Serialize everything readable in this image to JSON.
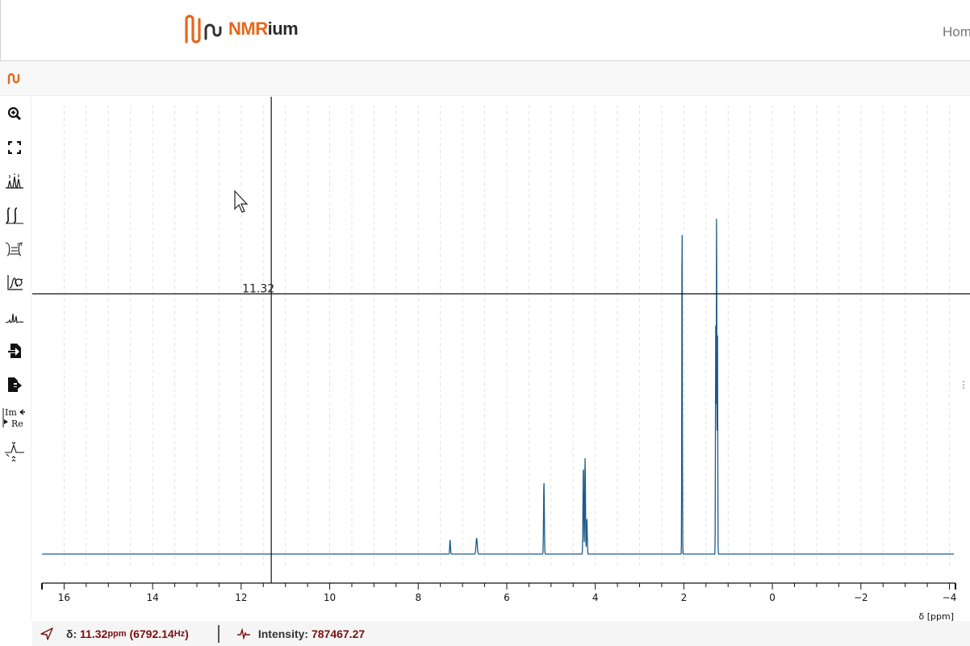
{
  "header": {
    "logo_text_nm": "NMR",
    "logo_text_ium": "ium",
    "home_link": "Hom"
  },
  "toolbar": {
    "tools": [
      {
        "name": "zoom-in-icon"
      },
      {
        "name": "full-zoom-icon"
      },
      {
        "name": "peak-picking-icon"
      },
      {
        "name": "integral-icon"
      },
      {
        "name": "ranges-icon"
      },
      {
        "name": "phase-correction-icon"
      },
      {
        "name": "baseline-correction-icon"
      },
      {
        "name": "import-icon"
      },
      {
        "name": "export-icon"
      },
      {
        "name": "real-imaginary-icon"
      },
      {
        "name": "spectra-stack-icon"
      }
    ],
    "re_im_label_top": "Im",
    "re_im_label_bottom": "Re"
  },
  "crosshair": {
    "ppm_label": "11.32",
    "ppm": 11.32,
    "cursor_intensity_fraction": 0.73
  },
  "footer": {
    "delta_label": "δ:",
    "delta_value": "11.32",
    "delta_unit": "ppm",
    "hz_open": "(",
    "hz_value": "6792.14",
    "hz_unit": "Hz",
    "hz_close": ")",
    "intensity_label": "Intensity:",
    "intensity_value": "787467.27"
  },
  "colors": {
    "spectrum": "#1f5b8a",
    "accent": "#e5671a",
    "value_text": "#7a1111"
  },
  "chart_data": {
    "type": "line",
    "title": "",
    "xlabel": "δ [ppm]",
    "ylabel": "",
    "xlim": [
      16.5,
      -4.1
    ],
    "x_reversed": true,
    "x_ticks": [
      16,
      14,
      12,
      10,
      8,
      6,
      4,
      2,
      0,
      -2,
      -4
    ],
    "x_tick_labels": [
      "16",
      "14",
      "12",
      "10",
      "8",
      "6",
      "4",
      "2",
      "0",
      "−2",
      "−4"
    ],
    "grid": "vertical dashed",
    "series": [
      {
        "peaks_ppm_relative_intensity": [
          {
            "ppm": 7.28,
            "intensity": 0.04
          },
          {
            "ppm": 6.68,
            "intensity": 0.045
          },
          {
            "ppm": 5.16,
            "intensity": 0.205
          },
          {
            "ppm": 4.27,
            "intensity": 0.25
          },
          {
            "ppm": 4.23,
            "intensity": 0.27
          },
          {
            "ppm": 4.19,
            "intensity": 0.1
          },
          {
            "ppm": 2.04,
            "intensity": 0.98
          },
          {
            "ppm": 1.28,
            "intensity": 0.64
          },
          {
            "ppm": 1.26,
            "intensity": 1.0
          },
          {
            "ppm": 1.24,
            "intensity": 0.66
          }
        ]
      }
    ]
  }
}
